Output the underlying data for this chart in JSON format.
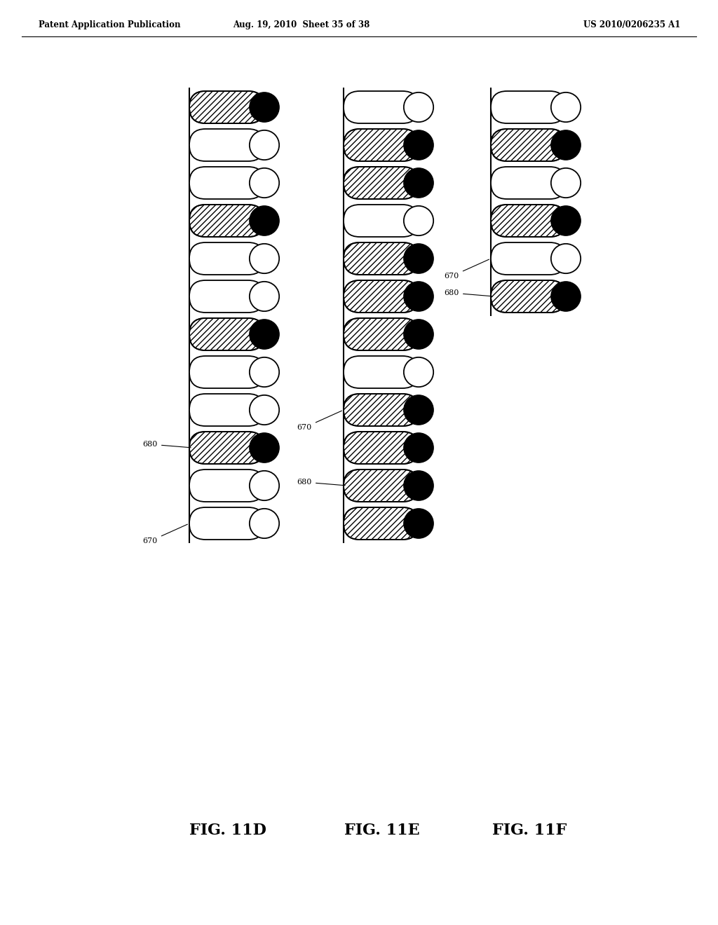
{
  "header_left": "Patent Application Publication",
  "header_mid": "Aug. 19, 2010  Sheet 35 of 38",
  "header_right": "US 2010/0206235 A1",
  "bg_color": "#ffffff",
  "line_color": "#000000",
  "fig11D": {
    "label": "FIG. 11D",
    "slots": [
      1,
      0,
      0,
      1,
      0,
      0,
      1,
      0,
      0,
      1,
      0,
      0
    ],
    "label_670_idx": 11,
    "label_680_idx": 9
  },
  "fig11E": {
    "label": "FIG. 11E",
    "slots": [
      0,
      1,
      1,
      0,
      1,
      1,
      1,
      0,
      1,
      1,
      1,
      1
    ],
    "label_670_idx": 8,
    "label_680_idx": 10
  },
  "fig11F": {
    "label": "FIG. 11F",
    "slots": [
      0,
      1,
      0,
      1,
      0,
      1
    ],
    "label_670_idx": 4,
    "label_680_idx": 5
  }
}
